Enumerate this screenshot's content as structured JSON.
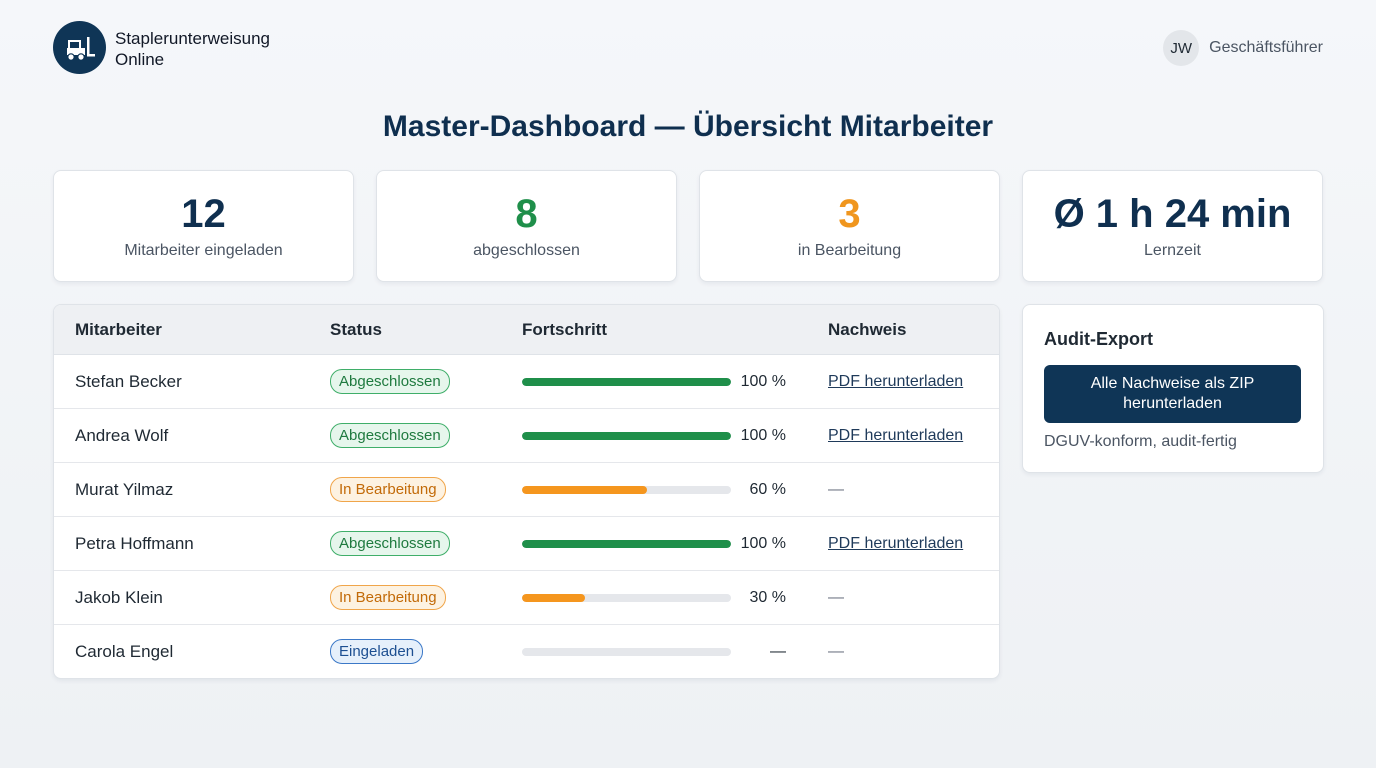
{
  "brand": {
    "line1": "Staplerunterweisung",
    "line2": "Online",
    "logo_icon": "forklift-icon"
  },
  "user": {
    "initials": "JW",
    "role": "Geschäftsführer"
  },
  "page_title": "Master-Dashboard — Übersicht Mitarbeiter",
  "stats": [
    {
      "value": "12",
      "label": "Mitarbeiter eingeladen",
      "color": "#0f2f4f"
    },
    {
      "value": "8",
      "label": "abgeschlossen",
      "color": "#1f8f4a"
    },
    {
      "value": "3",
      "label": "in Bearbeitung",
      "color": "#f0961e"
    },
    {
      "value": "Ø 1 h 24 min",
      "label": "Lernzeit",
      "color": "#0f2f4f"
    }
  ],
  "table": {
    "headers": [
      "Mitarbeiter",
      "Status",
      "Fortschritt",
      "Nachweis"
    ],
    "rows": [
      {
        "name": "Stefan Becker",
        "status": "Abgeschlossen",
        "status_type": "done",
        "progress": 100,
        "progress_label": "100 %",
        "proof": "PDF herunterladen"
      },
      {
        "name": "Andrea Wolf",
        "status": "Abgeschlossen",
        "status_type": "done",
        "progress": 100,
        "progress_label": "100 %",
        "proof": "PDF herunterladen"
      },
      {
        "name": "Murat Yilmaz",
        "status": "In Bearbeitung",
        "status_type": "progress",
        "progress": 60,
        "progress_label": "60 %",
        "proof": "—"
      },
      {
        "name": "Petra Hoffmann",
        "status": "Abgeschlossen",
        "status_type": "done",
        "progress": 100,
        "progress_label": "100 %",
        "proof": "PDF herunterladen"
      },
      {
        "name": "Jakob Klein",
        "status": "In Bearbeitung",
        "status_type": "progress",
        "progress": 30,
        "progress_label": "30 %",
        "proof": "—"
      },
      {
        "name": "Carola Engel",
        "status": "Eingeladen",
        "status_type": "invited",
        "progress": 0,
        "progress_label": "—",
        "proof": "—"
      }
    ]
  },
  "status_styles": {
    "done": {
      "text": "#1f7a3f",
      "bg": "#e6f6ec",
      "border": "#3fae69",
      "bar": "#1f8f4a"
    },
    "progress": {
      "text": "#c26a08",
      "bg": "#fdf2e1",
      "border": "#f0a54a",
      "bar": "#f5961e"
    },
    "invited": {
      "text": "#1d4f91",
      "bg": "#e6f0fb",
      "border": "#3b78c7",
      "bar": "#e5e7eb"
    }
  },
  "audit": {
    "title": "Audit-Export",
    "button_label": "Alle Nachweise als ZIP herunterladen",
    "note": "DGUV-konform, audit-fertig"
  }
}
